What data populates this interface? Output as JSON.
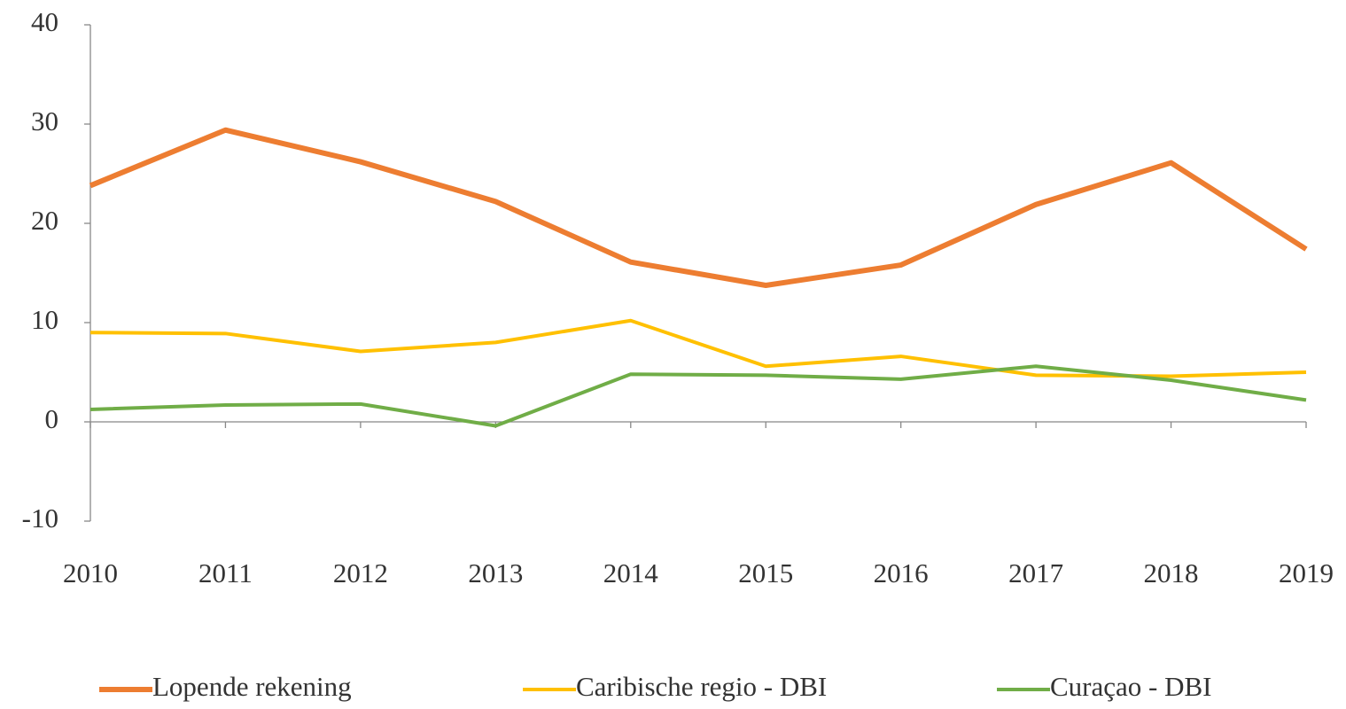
{
  "chart_data": {
    "type": "line",
    "categories": [
      "2010",
      "2011",
      "2012",
      "2013",
      "2014",
      "2015",
      "2016",
      "2017",
      "2018",
      "2019"
    ],
    "series": [
      {
        "name": "Lopende rekening",
        "color": "#ed7d31",
        "values": [
          23.8,
          29.4,
          26.2,
          22.2,
          16.1,
          13.75,
          15.8,
          21.9,
          26.1,
          17.4
        ]
      },
      {
        "name": "Caribische regio - DBI",
        "color": "#ffc000",
        "values": [
          9.0,
          8.9,
          7.1,
          8.0,
          10.2,
          5.6,
          6.6,
          4.7,
          4.6,
          5.0
        ]
      },
      {
        "name": "Curaçao - DBI",
        "color": "#70ad47",
        "values": [
          1.25,
          1.7,
          1.8,
          -0.4,
          4.8,
          4.7,
          4.3,
          5.6,
          4.2,
          2.2
        ]
      }
    ],
    "ylim": [
      -10,
      40
    ],
    "yticks": [
      -10,
      0,
      10,
      20,
      30,
      40
    ],
    "grid": false,
    "legend": "bottom"
  }
}
